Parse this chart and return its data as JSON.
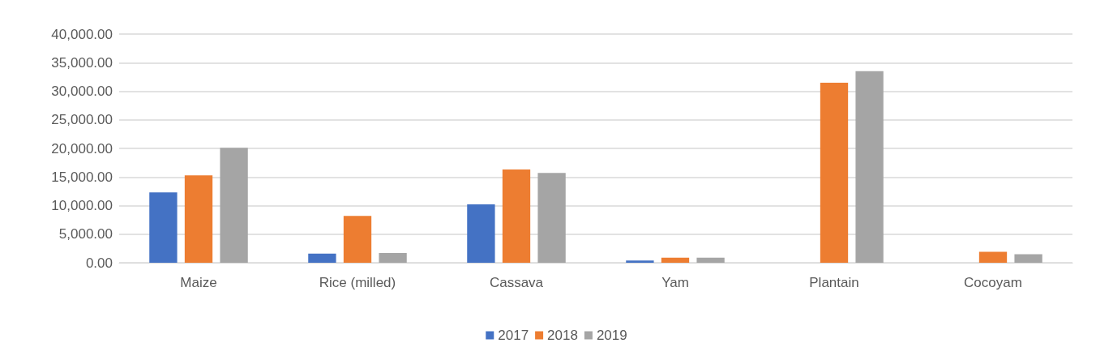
{
  "chart_data": {
    "type": "bar",
    "categories": [
      "Maize",
      "Rice (milled)",
      "Cassava",
      "Yam",
      "Plantain",
      "Cocoyam"
    ],
    "series": [
      {
        "name": "2017",
        "color": "#4472c4",
        "values": [
          12300,
          1600,
          10200,
          400,
          null,
          null
        ]
      },
      {
        "name": "2018",
        "color": "#ed7d31",
        "values": [
          15300,
          8200,
          16300,
          900,
          31500,
          1900
        ]
      },
      {
        "name": "2019",
        "color": "#a5a5a5",
        "values": [
          20100,
          1700,
          15700,
          900,
          33500,
          1500
        ]
      }
    ],
    "ylim": [
      0,
      40000
    ],
    "yticks": [
      {
        "value": 0,
        "label": "0.00"
      },
      {
        "value": 5000,
        "label": "5,000.00"
      },
      {
        "value": 10000,
        "label": "10,000.00"
      },
      {
        "value": 15000,
        "label": "15,000.00"
      },
      {
        "value": 20000,
        "label": "20,000.00"
      },
      {
        "value": 25000,
        "label": "25,000.00"
      },
      {
        "value": 30000,
        "label": "30,000.00"
      },
      {
        "value": 35000,
        "label": "35,000.00"
      },
      {
        "value": 40000,
        "label": "40,000.00"
      }
    ],
    "grid": "y",
    "legend": "bottom"
  }
}
